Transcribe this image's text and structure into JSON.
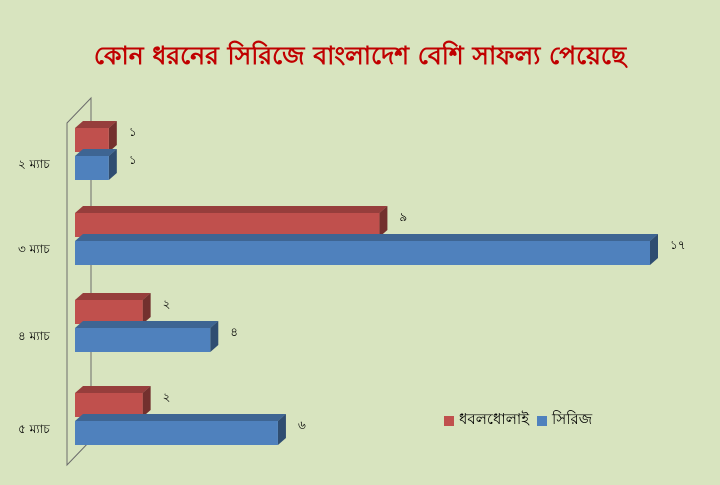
{
  "chart_data": {
    "type": "bar",
    "orientation": "horizontal",
    "title": "কোন ধরনের সিরিজে বাংলাদেশ বেশি সাফল্য পেয়েছে",
    "categories": [
      "২ ম্যাচ",
      "৩ ম্যাচ",
      "৪ ম্যাচ",
      "৫ ম্যাচ"
    ],
    "series": [
      {
        "name": "ধবলধোলাই",
        "values": [
          1,
          9,
          2,
          2
        ],
        "labels": [
          "১",
          "৯",
          "২",
          "২"
        ],
        "color": "#c0504d"
      },
      {
        "name": "সিরিজ",
        "values": [
          1,
          17,
          4,
          6
        ],
        "labels": [
          "১",
          "১৭",
          "৪",
          "৬"
        ],
        "color": "#4f81bd"
      }
    ],
    "xlim": [
      0,
      17
    ],
    "grid": false,
    "legend_position": "bottom-right",
    "style": "3d"
  }
}
